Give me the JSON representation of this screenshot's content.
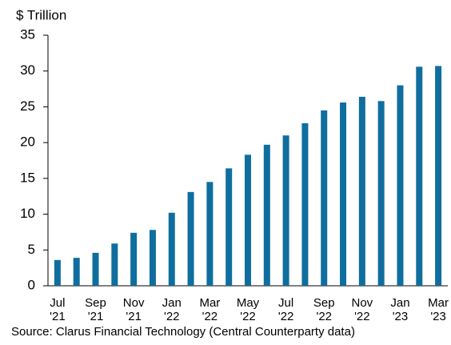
{
  "chart_data": {
    "type": "bar",
    "y_axis_label": "$ Trillion",
    "source": "Source: Clarus Financial Technology (Central Counterparty data)",
    "categories": [
      "Jul '21",
      null,
      "Sep '21",
      null,
      "Nov '21",
      null,
      "Jan '22",
      null,
      "Mar '22",
      null,
      "May '22",
      null,
      "Jul '22",
      null,
      "Sep '22",
      null,
      "Nov '22",
      null,
      "Jan '23",
      null,
      "Mar '23"
    ],
    "values": [
      3.6,
      3.9,
      4.6,
      5.9,
      7.4,
      7.8,
      10.2,
      13.1,
      14.5,
      16.4,
      18.3,
      19.7,
      21.0,
      22.7,
      24.5,
      25.6,
      26.4,
      25.8,
      28.0,
      30.6,
      30.7
    ],
    "color": "#0f6e9e",
    "ylim": [
      0,
      35
    ],
    "yticks": [
      0,
      5,
      10,
      15,
      20,
      25,
      30,
      35
    ],
    "grid": false
  }
}
